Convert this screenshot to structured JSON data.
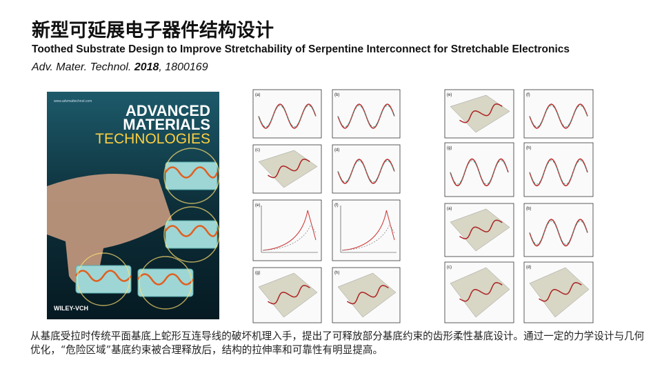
{
  "header": {
    "title": "新型可延展电子器件结构设计",
    "subtitle": "Toothed Substrate Design to Improve Stretchability of Serpentine Interconnect for Stretchable Electronics",
    "citation": {
      "parts": [
        "Adv. Mater. Technol. ",
        "2018",
        ", 1800169"
      ]
    }
  },
  "cover": {
    "url": "www.advmattechnol.com",
    "lines": [
      "ADVANCED",
      "MATERIALS",
      "TECHNOLOGIES"
    ],
    "publisher": "WILEY-VCH"
  },
  "figure_left": {
    "panels": [
      "(a)",
      "(b)",
      "(c)",
      "(d)",
      "(e)",
      "(f)",
      "(g)",
      "(h)"
    ]
  },
  "figure_right": {
    "panels": [
      "(e)",
      "(f)",
      "(g)",
      "(h)",
      "(a)",
      "(b)",
      "(c)",
      "(d)"
    ]
  },
  "body": {
    "text": "从基底受拉时传统平面基底上蛇形互连导线的破坏机理入手，提出了可释放部分基底约束的齿形柔性基底设计。通过一定的力学设计与几何优化，“危险区域”基底约束被合理释放后，结构的拉伸率和可靠性有明显提高。"
  }
}
